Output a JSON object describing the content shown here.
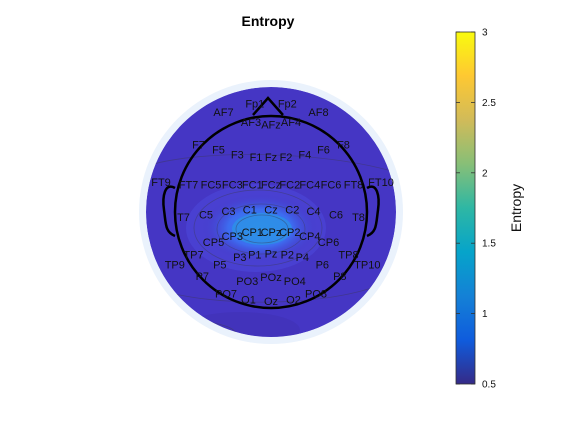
{
  "chart_data": {
    "type": "heatmap",
    "title": "Entropy",
    "colorbar": {
      "label": "Entropy",
      "range": [
        0.5,
        3
      ],
      "ticks": [
        "0.5",
        "1",
        "1.5",
        "2",
        "2.5",
        "3"
      ],
      "colormap": "parula"
    },
    "peak_region": [
      "Cz",
      "C2",
      "CP1",
      "CPz",
      "CP2"
    ],
    "peak_value_approx": 1.3,
    "background_value_approx": 0.6,
    "channels": [
      {
        "name": "Fp1",
        "u": -0.13,
        "v": 0.87
      },
      {
        "name": "Fp2",
        "u": 0.13,
        "v": 0.87
      },
      {
        "name": "AF7",
        "u": -0.38,
        "v": 0.8
      },
      {
        "name": "AF3",
        "u": -0.16,
        "v": 0.72
      },
      {
        "name": "AFz",
        "u": 0.0,
        "v": 0.7
      },
      {
        "name": "AF4",
        "u": 0.16,
        "v": 0.72
      },
      {
        "name": "AF8",
        "u": 0.38,
        "v": 0.8
      },
      {
        "name": "F7",
        "u": -0.58,
        "v": 0.54
      },
      {
        "name": "F5",
        "u": -0.42,
        "v": 0.5
      },
      {
        "name": "F3",
        "u": -0.27,
        "v": 0.46
      },
      {
        "name": "F1",
        "u": -0.12,
        "v": 0.44
      },
      {
        "name": "Fz",
        "u": 0.0,
        "v": 0.44
      },
      {
        "name": "F2",
        "u": 0.12,
        "v": 0.44
      },
      {
        "name": "F4",
        "u": 0.27,
        "v": 0.46
      },
      {
        "name": "F6",
        "u": 0.42,
        "v": 0.5
      },
      {
        "name": "F8",
        "u": 0.58,
        "v": 0.54
      },
      {
        "name": "FT9",
        "u": -0.88,
        "v": 0.24
      },
      {
        "name": "FT7",
        "u": -0.66,
        "v": 0.22
      },
      {
        "name": "FC5",
        "u": -0.48,
        "v": 0.22
      },
      {
        "name": "FC3",
        "u": -0.31,
        "v": 0.22
      },
      {
        "name": "FC1",
        "u": -0.15,
        "v": 0.22
      },
      {
        "name": "FCz",
        "u": 0.0,
        "v": 0.22
      },
      {
        "name": "FC2",
        "u": 0.15,
        "v": 0.22
      },
      {
        "name": "FC4",
        "u": 0.31,
        "v": 0.22
      },
      {
        "name": "FC6",
        "u": 0.48,
        "v": 0.22
      },
      {
        "name": "FT8",
        "u": 0.66,
        "v": 0.22
      },
      {
        "name": "FT10",
        "u": 0.88,
        "v": 0.24
      },
      {
        "name": "T7",
        "u": -0.7,
        "v": -0.04
      },
      {
        "name": "C5",
        "u": -0.52,
        "v": -0.02
      },
      {
        "name": "C3",
        "u": -0.34,
        "v": 0.01
      },
      {
        "name": "C1",
        "u": -0.17,
        "v": 0.02
      },
      {
        "name": "Cz",
        "u": 0.0,
        "v": 0.02
      },
      {
        "name": "C2",
        "u": 0.17,
        "v": 0.02
      },
      {
        "name": "C4",
        "u": 0.34,
        "v": 0.01
      },
      {
        "name": "C6",
        "u": 0.52,
        "v": -0.02
      },
      {
        "name": "T8",
        "u": 0.7,
        "v": -0.04
      },
      {
        "name": "CP5",
        "u": -0.46,
        "v": -0.24
      },
      {
        "name": "CP3",
        "u": -0.31,
        "v": -0.19
      },
      {
        "name": "CP1",
        "u": -0.15,
        "v": -0.16
      },
      {
        "name": "CPz",
        "u": 0.0,
        "v": -0.16
      },
      {
        "name": "CP2",
        "u": 0.15,
        "v": -0.16
      },
      {
        "name": "CP4",
        "u": 0.31,
        "v": -0.19
      },
      {
        "name": "CP6",
        "u": 0.46,
        "v": -0.24
      },
      {
        "name": "TP7",
        "u": -0.62,
        "v": -0.34
      },
      {
        "name": "TP8",
        "u": 0.62,
        "v": -0.34
      },
      {
        "name": "TP9",
        "u": -0.77,
        "v": -0.42
      },
      {
        "name": "TP10",
        "u": 0.77,
        "v": -0.42
      },
      {
        "name": "P3",
        "u": -0.25,
        "v": -0.36
      },
      {
        "name": "P1",
        "u": -0.13,
        "v": -0.34
      },
      {
        "name": "Pz",
        "u": 0.0,
        "v": -0.33
      },
      {
        "name": "P2",
        "u": 0.13,
        "v": -0.34
      },
      {
        "name": "P4",
        "u": 0.25,
        "v": -0.36
      },
      {
        "name": "P5",
        "u": -0.41,
        "v": -0.42
      },
      {
        "name": "P6",
        "u": 0.41,
        "v": -0.42
      },
      {
        "name": "P7",
        "u": -0.55,
        "v": -0.51
      },
      {
        "name": "P8",
        "u": 0.55,
        "v": -0.51
      },
      {
        "name": "PO3",
        "u": -0.19,
        "v": -0.55
      },
      {
        "name": "POz",
        "u": 0.0,
        "v": -0.52
      },
      {
        "name": "PO4",
        "u": 0.19,
        "v": -0.55
      },
      {
        "name": "PO7",
        "u": -0.36,
        "v": -0.65
      },
      {
        "name": "PO8",
        "u": 0.36,
        "v": -0.65
      },
      {
        "name": "O1",
        "u": -0.18,
        "v": -0.7
      },
      {
        "name": "Oz",
        "u": 0.0,
        "v": -0.71
      },
      {
        "name": "O2",
        "u": 0.18,
        "v": -0.7
      }
    ]
  }
}
